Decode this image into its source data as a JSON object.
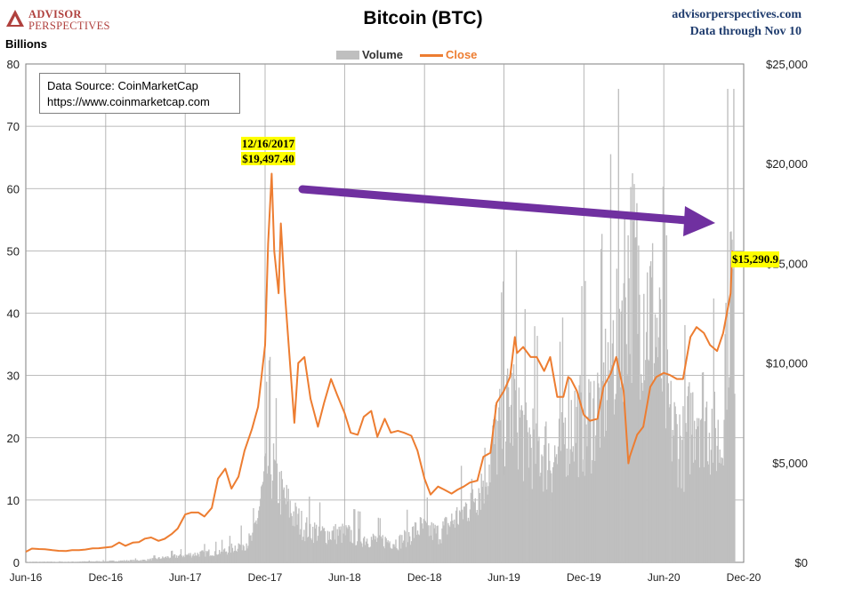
{
  "header": {
    "logo_line1": "ADVISOR",
    "logo_line2": "PERSPECTIVES",
    "title": "Bitcoin (BTC)",
    "site": "advisorperspectives.com",
    "data_through": "Data through Nov 10",
    "units_label": "Billions"
  },
  "legend": {
    "volume_label": "Volume",
    "close_label": "Close"
  },
  "source_box": {
    "line1": "Data Source: CoinMarketCap",
    "line2": "https://www.coinmarketcap.com"
  },
  "annotations": {
    "peak_date": "12/16/2017",
    "peak_value": "$19,497.40",
    "last_value": "$15,290.9"
  },
  "colors": {
    "volume": "#bfbfbf",
    "close": "#ed7d31",
    "arrow": "#7030a0",
    "highlight": "#ffff00",
    "grid": "#a6a6a6"
  },
  "chart_data": {
    "type": "line",
    "title": "Bitcoin (BTC)",
    "ylabel": "Billions",
    "y2label": "",
    "ylim": [
      0,
      80
    ],
    "y2lim": [
      0,
      25000
    ],
    "yticks": [
      "0",
      "10",
      "20",
      "30",
      "40",
      "50",
      "60",
      "70",
      "80"
    ],
    "y2ticks": [
      "$0",
      "$5,000",
      "$10,000",
      "$15,000",
      "$20,000",
      "$25,000"
    ],
    "y2tick_values": [
      0,
      5000,
      10000,
      15000,
      20000,
      25000
    ],
    "xticks": [
      "Jun-16",
      "Dec-16",
      "Jun-17",
      "Dec-17",
      "Jun-18",
      "Dec-18",
      "Jun-19",
      "Dec-19",
      "Jun-20",
      "Dec-20"
    ],
    "xtick_dates": [
      "2016-06-01",
      "2016-12-01",
      "2017-06-01",
      "2017-12-01",
      "2018-06-01",
      "2018-12-01",
      "2019-06-01",
      "2019-12-01",
      "2020-06-01",
      "2020-12-01"
    ],
    "xlim": [
      "2016-06-01",
      "2020-12-01"
    ],
    "grid": true,
    "legend_position": "top-center",
    "series": [
      {
        "name": "Close",
        "axis": "right",
        "x": [
          "2016-06-01",
          "2016-06-15",
          "2016-07-01",
          "2016-07-15",
          "2016-08-01",
          "2016-08-15",
          "2016-09-01",
          "2016-09-15",
          "2016-10-01",
          "2016-10-15",
          "2016-11-01",
          "2016-11-15",
          "2016-12-01",
          "2016-12-15",
          "2017-01-01",
          "2017-01-15",
          "2017-02-01",
          "2017-02-15",
          "2017-03-01",
          "2017-03-15",
          "2017-04-01",
          "2017-04-15",
          "2017-05-01",
          "2017-05-15",
          "2017-06-01",
          "2017-06-15",
          "2017-07-01",
          "2017-07-15",
          "2017-08-01",
          "2017-08-15",
          "2017-09-01",
          "2017-09-15",
          "2017-10-01",
          "2017-10-15",
          "2017-11-01",
          "2017-11-15",
          "2017-12-01",
          "2017-12-08",
          "2017-12-16",
          "2017-12-22",
          "2018-01-01",
          "2018-01-06",
          "2018-01-15",
          "2018-02-06",
          "2018-02-15",
          "2018-03-01",
          "2018-03-15",
          "2018-04-01",
          "2018-04-15",
          "2018-05-01",
          "2018-05-15",
          "2018-06-01",
          "2018-06-15",
          "2018-07-01",
          "2018-07-15",
          "2018-08-01",
          "2018-08-15",
          "2018-09-01",
          "2018-09-15",
          "2018-10-01",
          "2018-10-15",
          "2018-11-01",
          "2018-11-15",
          "2018-12-01",
          "2018-12-15",
          "2019-01-01",
          "2019-01-15",
          "2019-02-01",
          "2019-02-15",
          "2019-03-01",
          "2019-03-15",
          "2019-04-01",
          "2019-04-15",
          "2019-05-01",
          "2019-05-15",
          "2019-06-01",
          "2019-06-15",
          "2019-06-26",
          "2019-07-01",
          "2019-07-15",
          "2019-08-01",
          "2019-08-15",
          "2019-09-01",
          "2019-09-15",
          "2019-10-01",
          "2019-10-15",
          "2019-10-26",
          "2019-11-01",
          "2019-11-15",
          "2019-12-01",
          "2019-12-15",
          "2020-01-01",
          "2020-01-15",
          "2020-02-01",
          "2020-02-13",
          "2020-03-01",
          "2020-03-12",
          "2020-03-15",
          "2020-04-01",
          "2020-04-15",
          "2020-05-01",
          "2020-05-15",
          "2020-06-01",
          "2020-06-15",
          "2020-07-01",
          "2020-07-15",
          "2020-08-01",
          "2020-08-15",
          "2020-09-01",
          "2020-09-15",
          "2020-10-01",
          "2020-10-15",
          "2020-11-01",
          "2020-11-05",
          "2020-11-10"
        ],
        "values": [
          530,
          690,
          670,
          660,
          610,
          580,
          570,
          610,
          610,
          640,
          700,
          710,
          750,
          780,
          1000,
          830,
          990,
          1010,
          1190,
          1250,
          1080,
          1180,
          1420,
          1700,
          2400,
          2500,
          2500,
          2300,
          2730,
          4200,
          4700,
          3700,
          4300,
          5600,
          6700,
          7800,
          10900,
          16000,
          19497,
          15600,
          13500,
          17000,
          13600,
          7000,
          10000,
          10300,
          8200,
          6800,
          8000,
          9200,
          8400,
          7500,
          6500,
          6400,
          7300,
          7600,
          6300,
          7200,
          6500,
          6600,
          6500,
          6350,
          5600,
          4200,
          3400,
          3800,
          3650,
          3450,
          3650,
          3800,
          4000,
          4100,
          5300,
          5500,
          8000,
          8600,
          9300,
          11300,
          10500,
          10800,
          10300,
          10300,
          9600,
          10300,
          8300,
          8300,
          9300,
          9200,
          8600,
          7400,
          7100,
          7200,
          8800,
          9500,
          10300,
          8600,
          4970,
          5300,
          6400,
          6800,
          8800,
          9300,
          9500,
          9400,
          9200,
          9200,
          11300,
          11800,
          11500,
          10900,
          10600,
          11500,
          13500,
          15600,
          15290
        ]
      },
      {
        "name": "Volume",
        "axis": "left",
        "x": [
          "2016-06-01",
          "2016-09-01",
          "2016-12-01",
          "2017-03-01",
          "2017-05-01",
          "2017-07-01",
          "2017-09-01",
          "2017-11-01",
          "2017-12-10",
          "2017-12-22",
          "2018-01-05",
          "2018-02-05",
          "2018-03-01",
          "2018-04-15",
          "2018-06-01",
          "2018-08-01",
          "2018-10-01",
          "2018-11-20",
          "2019-01-01",
          "2019-03-01",
          "2019-04-10",
          "2019-05-15",
          "2019-06-26",
          "2019-07-15",
          "2019-08-15",
          "2019-10-01",
          "2019-10-26",
          "2019-12-01",
          "2020-01-10",
          "2020-02-13",
          "2020-03-12",
          "2020-04-15",
          "2020-05-10",
          "2020-06-15",
          "2020-07-15",
          "2020-08-15",
          "2020-09-15",
          "2020-10-10",
          "2020-10-21",
          "2020-11-01",
          "2020-11-10"
        ],
        "values": [
          0.1,
          0.1,
          0.2,
          0.4,
          1.0,
          1.5,
          2.0,
          4.0,
          18,
          15,
          12,
          8,
          6,
          5,
          5,
          4,
          3.5,
          6,
          5,
          9,
          14,
          22,
          28,
          22,
          20,
          18,
          25,
          24,
          28,
          40,
          52,
          46,
          42,
          24,
          20,
          28,
          24,
          20,
          42,
          50,
          45
        ]
      }
    ]
  }
}
